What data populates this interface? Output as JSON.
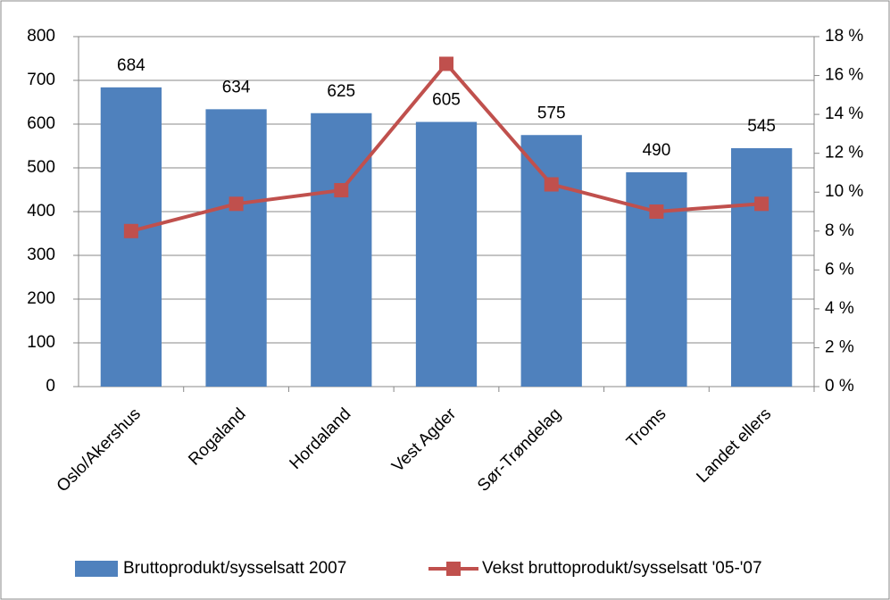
{
  "chart_data": {
    "type": "bar",
    "categories": [
      "Oslo/Akershus",
      "Rogaland",
      "Hordaland",
      "Vest Agder",
      "Sør-Trøndelag",
      "Troms",
      "Landet ellers"
    ],
    "series": [
      {
        "name": "Bruttoprodukt/sysselsatt  2007",
        "type": "bar",
        "color": "#4f81bd",
        "values": [
          684,
          634,
          625,
          605,
          575,
          490,
          545
        ]
      },
      {
        "name": "Vekst bruttoprodukt/sysselsatt  '05-'07",
        "type": "line",
        "axis": "y2",
        "color": "#c0504d",
        "values": [
          8.0,
          9.4,
          10.1,
          16.6,
          10.4,
          9.0,
          9.4
        ]
      }
    ],
    "ylim": [
      0,
      800
    ],
    "yticks": [
      0,
      100,
      200,
      300,
      400,
      500,
      600,
      700,
      800
    ],
    "y2lim": [
      0,
      18
    ],
    "y2ticks": [
      {
        "value": 0,
        "label": "0 %"
      },
      {
        "value": 2,
        "label": "2 %"
      },
      {
        "value": 4,
        "label": "4 %"
      },
      {
        "value": 6,
        "label": "6 %"
      },
      {
        "value": 8,
        "label": "8 %"
      },
      {
        "value": 10,
        "label": "10 %"
      },
      {
        "value": 12,
        "label": "12 %"
      },
      {
        "value": 14,
        "label": "14 %"
      },
      {
        "value": 16,
        "label": "16 %"
      },
      {
        "value": 18,
        "label": "18 %"
      }
    ],
    "grid": true,
    "legend": "bottom"
  }
}
